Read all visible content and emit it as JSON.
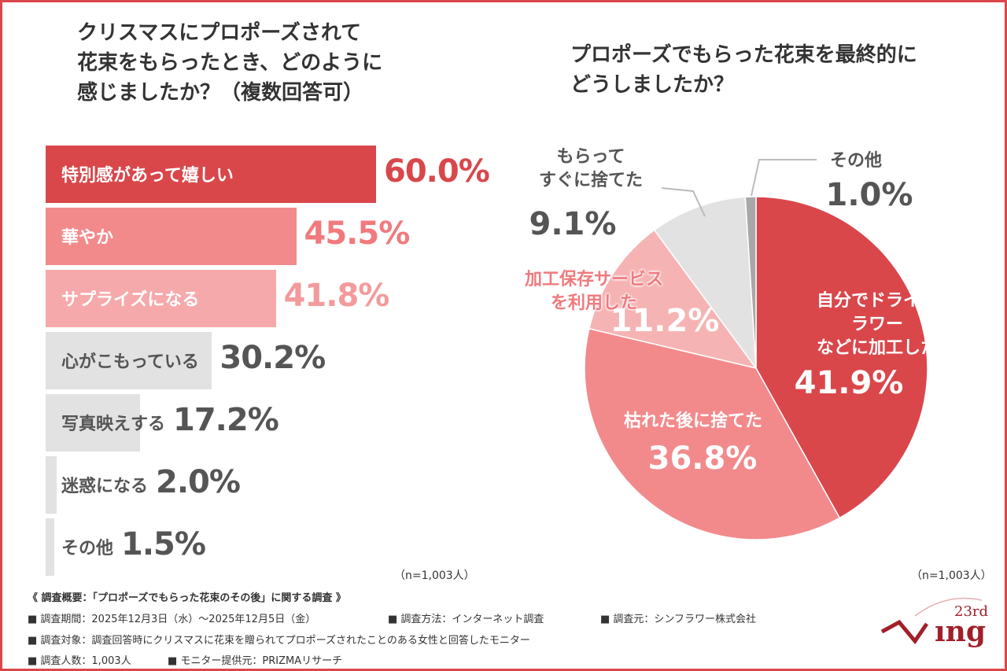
{
  "chart_data": [
    {
      "type": "bar",
      "orientation": "horizontal",
      "title": "クリスマスにプロポーズされて\n花束をもらったとき、どのように\n感じましたか？（複数回答可）",
      "categories": [
        "特別感があって嬉しい",
        "華やか",
        "サプライズになる",
        "心がこもっている",
        "写真映えする",
        "迷惑になる",
        "その他"
      ],
      "values": [
        60.0,
        45.5,
        41.8,
        30.2,
        17.2,
        2.0,
        1.5
      ],
      "value_labels": [
        "60.0%",
        "45.5%",
        "41.8%",
        "30.2%",
        "17.2%",
        "2.0%",
        "1.5%"
      ],
      "colors": [
        "#d9474b",
        "#f28a8c",
        "#f6a9ab",
        "#e2e2e2",
        "#e2e2e2",
        "#e2e2e2",
        "#e2e2e2"
      ],
      "label_colors": [
        "#ffffff",
        "#ffffff",
        "#ffffff",
        "#555555",
        "#555555",
        "#555555",
        "#555555"
      ],
      "value_label_colors": [
        "#d9474b",
        "#f07a7e",
        "#f39a9c",
        "#555555",
        "#555555",
        "#555555",
        "#555555"
      ],
      "note": "（n=1,003人）"
    },
    {
      "type": "pie",
      "title": "プロポーズでもらった花束を最終的に\nどうしましたか？",
      "categories": [
        "自分でドライフラワー\nなどに加工した",
        "枯れた後に捨てた",
        "加工保存サービス\nを利用した",
        "もらって\nすぐに捨てた",
        "その他"
      ],
      "values": [
        41.9,
        36.8,
        11.2,
        9.1,
        1.0
      ],
      "value_labels": [
        "41.9%",
        "36.8%",
        "11.2%",
        "9.1%",
        "1.0%"
      ],
      "colors": [
        "#d9474b",
        "#f28a8c",
        "#f6b3b4",
        "#e2e2e2",
        "#a8a8a8"
      ],
      "label_colors": [
        "#ffffff",
        "#ffffff",
        "#f07a7e",
        "#555555",
        "#555555"
      ],
      "value_label_colors": [
        "#ffffff",
        "#ffffff",
        "#ffffff",
        "#555555",
        "#555555"
      ],
      "note": "（n=1,003人）"
    }
  ],
  "footer": {
    "heading": "《 調査概要：「プロポーズでもらった花束のその後」に関する調査 》",
    "items": [
      "■ 調査期間：2025年12月3日（水）～2025年12月5日（金）",
      "■ 調査方法：インターネット調査",
      "■ 調査元：シンフラワー株式会社",
      "■ 調査対象：調査回答時にクリスマスに花束を贈られてプロポーズされたことのある女性と回答したモニター",
      "■ 調査人数：1,003人",
      "■ モニター提供元：PRIZMAリサーチ"
    ]
  },
  "logo": {
    "badge": "23rd"
  }
}
